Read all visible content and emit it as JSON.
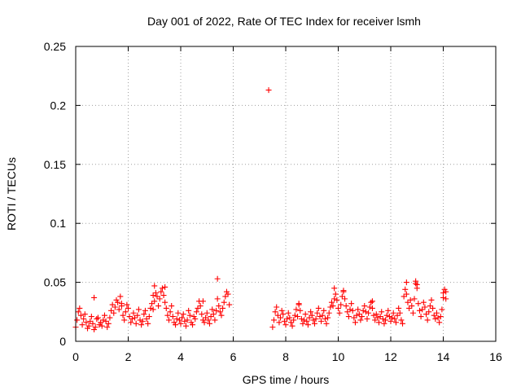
{
  "chart_data": {
    "type": "scatter",
    "title": "Day 001 of 2022, Rate Of TEC Index for receiver lsmh",
    "xlabel": "GPS time / hours",
    "ylabel": "ROTI / TECUs",
    "xlim": [
      0,
      16
    ],
    "ylim": [
      0,
      0.25
    ],
    "xticks": [
      "0",
      "2",
      "4",
      "6",
      "8",
      "10",
      "12",
      "14",
      "16"
    ],
    "yticks": [
      "0",
      "0.05",
      "0.1",
      "0.15",
      "0.2",
      "0.25"
    ],
    "xtick_values": [
      0,
      2,
      4,
      6,
      8,
      10,
      12,
      14,
      16
    ],
    "ytick_values": [
      0,
      0.05,
      0.1,
      0.15,
      0.2,
      0.25
    ],
    "grid": true,
    "marker": "plus",
    "color": "#ff0000",
    "series": [
      {
        "x": [
          0.0,
          0.05,
          0.1,
          0.15,
          0.2,
          0.25,
          0.3,
          0.35,
          0.4,
          0.45,
          0.5,
          0.55,
          0.6,
          0.65,
          0.7,
          0.75,
          0.8,
          0.85,
          0.9,
          0.95,
          1.0,
          1.05,
          1.1,
          1.15,
          1.2,
          1.25,
          1.3,
          1.35,
          1.4,
          1.45,
          1.5,
          1.55,
          1.6,
          1.65,
          1.7,
          1.75,
          1.8,
          1.85,
          1.9,
          1.95,
          2.0,
          2.05,
          2.1,
          2.15,
          2.2,
          2.25,
          2.3,
          2.35,
          2.4,
          2.45,
          2.5,
          2.55,
          2.6,
          2.65,
          2.7,
          2.75,
          2.8,
          2.85,
          2.9,
          2.95,
          3.0,
          3.05,
          3.1,
          3.15,
          3.2,
          3.25,
          3.3,
          3.35,
          3.4,
          3.45,
          3.5,
          3.55,
          3.6,
          3.65,
          3.7,
          3.75,
          3.8,
          3.85,
          3.9,
          3.95,
          4.0,
          4.05,
          4.1,
          4.15,
          4.2,
          4.25,
          4.3,
          4.35,
          4.4,
          4.45,
          4.5,
          4.55,
          4.6,
          4.65,
          4.7,
          4.75,
          4.8,
          4.85,
          4.9,
          4.95,
          5.0,
          5.05,
          5.1,
          5.15,
          5.2,
          5.25,
          5.3,
          5.35,
          5.4,
          5.45,
          5.5,
          5.55,
          5.6,
          5.65,
          5.7,
          5.75,
          5.8,
          5.85,
          0.7,
          3.0,
          3.4,
          5.4,
          1.75,
          2.95,
          4.85,
          7.35,
          7.5,
          7.55,
          7.6,
          7.65,
          7.7,
          7.75,
          7.8,
          7.85,
          7.9,
          7.95,
          8.0,
          8.05,
          8.1,
          8.15,
          8.2,
          8.25,
          8.3,
          8.35,
          8.4,
          8.45,
          8.5,
          8.55,
          8.6,
          8.65,
          8.7,
          8.75,
          8.8,
          8.85,
          8.9,
          8.95,
          9.0,
          9.05,
          9.1,
          9.15,
          9.2,
          9.25,
          9.3,
          9.35,
          9.4,
          9.45,
          9.5,
          9.55,
          9.6,
          9.65,
          9.7,
          9.75,
          9.8,
          9.85,
          9.9,
          9.95,
          10.0,
          10.05,
          10.1,
          10.15,
          10.2,
          10.25,
          10.3,
          10.35,
          10.4,
          10.45,
          10.5,
          10.55,
          10.6,
          10.65,
          10.7,
          10.75,
          10.8,
          10.85,
          10.9,
          10.95,
          11.0,
          11.05,
          11.1,
          11.15,
          11.2,
          11.25,
          11.3,
          11.35,
          11.4,
          11.45,
          11.5,
          11.55,
          11.6,
          11.65,
          11.7,
          11.75,
          11.8,
          11.85,
          11.9,
          11.95,
          12.0,
          12.05,
          12.1,
          12.15,
          12.2,
          12.25,
          12.3,
          12.35,
          12.4,
          12.45,
          12.5,
          12.55,
          12.6,
          12.65,
          12.7,
          12.75,
          12.8,
          12.85,
          12.9,
          12.95,
          13.0,
          13.05,
          13.1,
          13.15,
          13.2,
          13.25,
          13.3,
          13.35,
          13.4,
          13.45,
          13.5,
          13.55,
          13.6,
          13.65,
          13.7,
          13.75,
          13.8,
          13.85,
          13.9,
          13.95,
          14.0,
          14.05,
          14.1,
          9.85,
          10.2,
          12.6,
          12.95,
          13.0,
          14.0,
          14.1,
          8.5,
          11.3
        ],
        "y": [
          0.012,
          0.018,
          0.025,
          0.028,
          0.022,
          0.014,
          0.019,
          0.023,
          0.016,
          0.011,
          0.013,
          0.017,
          0.021,
          0.015,
          0.01,
          0.012,
          0.019,
          0.02,
          0.014,
          0.016,
          0.013,
          0.018,
          0.022,
          0.017,
          0.012,
          0.015,
          0.02,
          0.026,
          0.031,
          0.024,
          0.029,
          0.035,
          0.033,
          0.027,
          0.038,
          0.03,
          0.022,
          0.018,
          0.025,
          0.031,
          0.028,
          0.021,
          0.016,
          0.019,
          0.024,
          0.02,
          0.015,
          0.022,
          0.027,
          0.018,
          0.014,
          0.017,
          0.023,
          0.026,
          0.019,
          0.015,
          0.021,
          0.028,
          0.032,
          0.027,
          0.034,
          0.041,
          0.038,
          0.03,
          0.036,
          0.042,
          0.045,
          0.039,
          0.033,
          0.028,
          0.022,
          0.018,
          0.025,
          0.03,
          0.021,
          0.016,
          0.014,
          0.019,
          0.024,
          0.018,
          0.015,
          0.02,
          0.023,
          0.017,
          0.013,
          0.018,
          0.026,
          0.022,
          0.016,
          0.014,
          0.021,
          0.019,
          0.025,
          0.028,
          0.034,
          0.03,
          0.023,
          0.018,
          0.016,
          0.02,
          0.024,
          0.018,
          0.015,
          0.021,
          0.027,
          0.023,
          0.018,
          0.026,
          0.036,
          0.03,
          0.025,
          0.022,
          0.028,
          0.033,
          0.038,
          0.042,
          0.04,
          0.031,
          0.037,
          0.047,
          0.046,
          0.053,
          0.032,
          0.039,
          0.034,
          0.213,
          0.012,
          0.018,
          0.025,
          0.029,
          0.022,
          0.016,
          0.02,
          0.026,
          0.023,
          0.017,
          0.014,
          0.019,
          0.024,
          0.02,
          0.016,
          0.013,
          0.018,
          0.022,
          0.027,
          0.021,
          0.032,
          0.026,
          0.019,
          0.015,
          0.018,
          0.023,
          0.017,
          0.014,
          0.02,
          0.025,
          0.022,
          0.018,
          0.015,
          0.019,
          0.024,
          0.028,
          0.021,
          0.017,
          0.022,
          0.026,
          0.019,
          0.015,
          0.02,
          0.024,
          0.029,
          0.033,
          0.03,
          0.036,
          0.04,
          0.035,
          0.028,
          0.024,
          0.031,
          0.038,
          0.042,
          0.036,
          0.03,
          0.025,
          0.021,
          0.027,
          0.032,
          0.026,
          0.02,
          0.016,
          0.022,
          0.027,
          0.023,
          0.018,
          0.021,
          0.026,
          0.03,
          0.025,
          0.019,
          0.024,
          0.029,
          0.033,
          0.028,
          0.022,
          0.018,
          0.023,
          0.02,
          0.016,
          0.021,
          0.025,
          0.019,
          0.015,
          0.018,
          0.022,
          0.026,
          0.021,
          0.017,
          0.02,
          0.024,
          0.019,
          0.016,
          0.022,
          0.028,
          0.024,
          0.018,
          0.015,
          0.038,
          0.044,
          0.04,
          0.033,
          0.028,
          0.035,
          0.03,
          0.024,
          0.036,
          0.049,
          0.045,
          0.032,
          0.026,
          0.021,
          0.027,
          0.033,
          0.029,
          0.023,
          0.018,
          0.025,
          0.03,
          0.035,
          0.028,
          0.022,
          0.019,
          0.024,
          0.02,
          0.016,
          0.021,
          0.027,
          0.041,
          0.044,
          0.036,
          0.045,
          0.043,
          0.05,
          0.051,
          0.048,
          0.037,
          0.042,
          0.031,
          0.034
        ]
      }
    ]
  }
}
